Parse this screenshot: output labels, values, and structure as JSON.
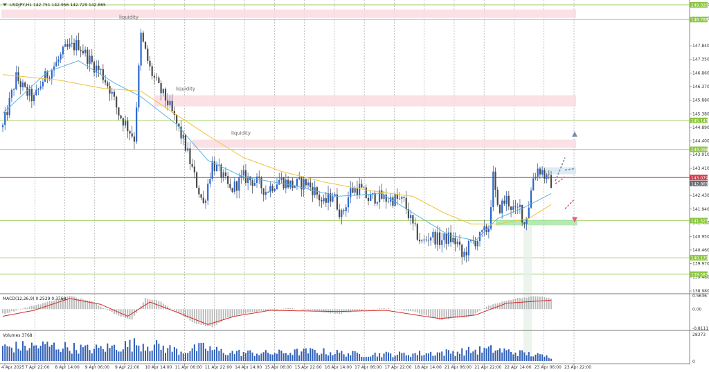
{
  "chart_data": {
    "type": "candlestick",
    "symbol_header": "USDJPY,H1  142.751 142.956 142.729 142.865",
    "price_axis": {
      "min": 138.98,
      "max": 149.32,
      "ticks": [
        "149.320",
        "148.830",
        "147.840",
        "147.350",
        "146.860",
        "146.370",
        "145.880",
        "145.380",
        "144.890",
        "144.400",
        "143.910",
        "143.410",
        "142.430",
        "141.940",
        "141.450",
        "140.950",
        "140.460",
        "139.970",
        "139.480",
        "138.980"
      ]
    },
    "time_axis": {
      "labels": [
        "4 Apr 2025",
        "7 Apr 22:00",
        "8 Apr 14:00",
        "9 Apr 06:00",
        "9 Apr 22:00",
        "10 Apr 14:00",
        "11 Apr 06:00",
        "11 Apr 22:00",
        "14 Apr 14:00",
        "15 Apr 06:00",
        "15 Apr 22:00",
        "16 Apr 14:00",
        "17 Apr 06:00",
        "17 Apr 22:00",
        "18 Apr 14:00",
        "21 Apr 06:00",
        "21 Apr 22:00",
        "22 Apr 14:00",
        "23 Apr 06:00",
        "23 Apr 22:00"
      ]
    },
    "candle_waypoints": [
      [
        0,
        144.9
      ],
      [
        6,
        146.7
      ],
      [
        10,
        146.2
      ],
      [
        14,
        145.9
      ],
      [
        18,
        146.6
      ],
      [
        24,
        147.2
      ],
      [
        28,
        147.7
      ],
      [
        34,
        147.9
      ],
      [
        40,
        147.2
      ],
      [
        44,
        146.9
      ],
      [
        48,
        146.3
      ],
      [
        52,
        145.4
      ],
      [
        56,
        144.9
      ],
      [
        59,
        144.5
      ],
      [
        62,
        148.2
      ],
      [
        66,
        147.0
      ],
      [
        70,
        146.3
      ],
      [
        74,
        145.8
      ],
      [
        78,
        145.0
      ],
      [
        82,
        144.2
      ],
      [
        86,
        143.1
      ],
      [
        90,
        142.1
      ],
      [
        94,
        143.6
      ],
      [
        98,
        143.2
      ],
      [
        102,
        142.6
      ],
      [
        108,
        143.1
      ],
      [
        114,
        142.9
      ],
      [
        118,
        142.6
      ],
      [
        124,
        143.0
      ],
      [
        130,
        142.8
      ],
      [
        136,
        142.9
      ],
      [
        140,
        142.6
      ],
      [
        144,
        142.1
      ],
      [
        148,
        142.5
      ],
      [
        152,
        141.7
      ],
      [
        156,
        142.6
      ],
      [
        160,
        142.7
      ],
      [
        164,
        142.3
      ],
      [
        168,
        142.4
      ],
      [
        172,
        142.3
      ],
      [
        176,
        142.3
      ],
      [
        180,
        142.2
      ],
      [
        184,
        141.3
      ],
      [
        188,
        140.7
      ],
      [
        192,
        141.0
      ],
      [
        196,
        140.8
      ],
      [
        200,
        140.9
      ],
      [
        204,
        140.7
      ],
      [
        206,
        140.2
      ],
      [
        210,
        140.7
      ],
      [
        214,
        140.9
      ],
      [
        218,
        141.3
      ],
      [
        220,
        143.1
      ],
      [
        222,
        141.9
      ],
      [
        226,
        142.3
      ],
      [
        230,
        141.8
      ],
      [
        232,
        142.0
      ],
      [
        234,
        141.4
      ],
      [
        236,
        142.1
      ],
      [
        238,
        143.1
      ],
      [
        240,
        143.4
      ],
      [
        242,
        143.3
      ],
      [
        244,
        143.0
      ],
      [
        246,
        142.9
      ]
    ],
    "moving_averages": [
      {
        "color": "#5bb4e0",
        "points": [
          [
            0,
            145.4
          ],
          [
            20,
            146.9
          ],
          [
            34,
            147.3
          ],
          [
            50,
            146.5
          ],
          [
            62,
            146.0
          ],
          [
            78,
            145.0
          ],
          [
            92,
            143.7
          ],
          [
            108,
            143.1
          ],
          [
            130,
            142.8
          ],
          [
            150,
            142.4
          ],
          [
            170,
            142.5
          ],
          [
            184,
            141.8
          ],
          [
            200,
            141.0
          ],
          [
            212,
            140.8
          ],
          [
            222,
            141.6
          ],
          [
            234,
            142.0
          ],
          [
            246,
            142.5
          ]
        ]
      },
      {
        "color": "#f0c23a",
        "points": [
          [
            0,
            146.8
          ],
          [
            25,
            146.6
          ],
          [
            45,
            146.3
          ],
          [
            62,
            146.2
          ],
          [
            75,
            145.5
          ],
          [
            92,
            144.6
          ],
          [
            108,
            143.8
          ],
          [
            125,
            143.3
          ],
          [
            145,
            142.9
          ],
          [
            165,
            142.6
          ],
          [
            184,
            142.4
          ],
          [
            198,
            141.8
          ],
          [
            210,
            141.4
          ],
          [
            222,
            141.4
          ],
          [
            236,
            141.6
          ],
          [
            246,
            142.1
          ]
        ]
      }
    ],
    "support_resistance_levels": [
      "149.320",
      "148.788",
      "145.143",
      "144.098",
      "143.079",
      "142.865",
      "141.523",
      "140.179",
      "139.587"
    ],
    "current_price": "142.865",
    "liquidity_zones": [
      {
        "label": "liquidity",
        "from": 148.85,
        "to": 149.15
      },
      {
        "label": "liquidity",
        "from": 145.65,
        "to": 146.05
      },
      {
        "label": "liquidity",
        "from": 144.15,
        "to": 144.45
      }
    ],
    "macd": {
      "label": "MACD(12,26,9) 0.2529 0.3768",
      "ticks": [
        "0.5636",
        "0.00",
        "-0.8111"
      ],
      "hist_waypoints": [
        [
          0,
          -0.2
        ],
        [
          12,
          0.1
        ],
        [
          20,
          0.3
        ],
        [
          30,
          0.55
        ],
        [
          40,
          0.35
        ],
        [
          50,
          -0.2
        ],
        [
          58,
          -0.45
        ],
        [
          64,
          0.45
        ],
        [
          70,
          0.35
        ],
        [
          78,
          -0.1
        ],
        [
          86,
          -0.6
        ],
        [
          94,
          -0.75
        ],
        [
          100,
          -0.4
        ],
        [
          110,
          -0.15
        ],
        [
          130,
          0.05
        ],
        [
          150,
          -0.2
        ],
        [
          170,
          0.05
        ],
        [
          184,
          -0.1
        ],
        [
          196,
          -0.45
        ],
        [
          210,
          -0.3
        ],
        [
          218,
          0.15
        ],
        [
          230,
          0.45
        ],
        [
          240,
          0.55
        ],
        [
          246,
          0.45
        ]
      ],
      "signal_waypoints": [
        [
          0,
          -0.3
        ],
        [
          14,
          -0.05
        ],
        [
          30,
          0.45
        ],
        [
          44,
          0.2
        ],
        [
          56,
          -0.3
        ],
        [
          66,
          0.3
        ],
        [
          76,
          -0.05
        ],
        [
          92,
          -0.65
        ],
        [
          104,
          -0.3
        ],
        [
          120,
          -0.05
        ],
        [
          150,
          -0.1
        ],
        [
          172,
          -0.05
        ],
        [
          196,
          -0.4
        ],
        [
          212,
          -0.25
        ],
        [
          226,
          0.25
        ],
        [
          246,
          0.38
        ]
      ]
    },
    "volumes": {
      "label": "Volumes 3768",
      "ticks": [
        "28373",
        "0"
      ],
      "waypoints": [
        [
          0,
          14000
        ],
        [
          20,
          16000
        ],
        [
          40,
          12000
        ],
        [
          62,
          18000
        ],
        [
          70,
          15000
        ],
        [
          80,
          10000
        ],
        [
          90,
          14000
        ],
        [
          100,
          9000
        ],
        [
          120,
          8000
        ],
        [
          140,
          10000
        ],
        [
          160,
          7000
        ],
        [
          180,
          7000
        ],
        [
          200,
          9000
        ],
        [
          220,
          12000
        ],
        [
          240,
          6000
        ],
        [
          246,
          4000
        ]
      ]
    },
    "projections": [
      {
        "color": "#7b8bb0",
        "points": [
          [
            142.95,
            143.8
          ],
          [
            143.35,
            143.4
          ],
          [
            144.7,
            144.7
          ]
        ]
      },
      {
        "color": "#ef5a82",
        "points": [
          [
            142.85,
            143.1
          ],
          [
            141.95,
            142.3
          ],
          [
            141.5,
            141.5
          ]
        ]
      }
    ]
  }
}
